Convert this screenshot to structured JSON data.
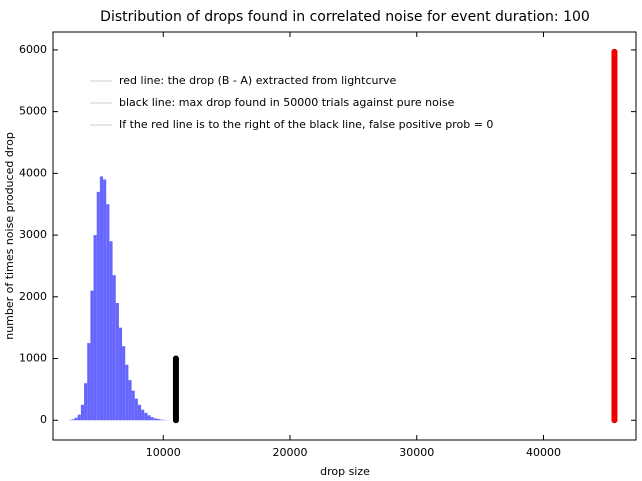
{
  "chart_data": {
    "type": "histogram",
    "title": "Distribution of drops found in correlated noise for event duration: 100",
    "xlabel": "drop size",
    "ylabel": "number of times noise produced drop",
    "bins": [
      2500,
      2750,
      3000,
      3250,
      3500,
      3750,
      4000,
      4250,
      4500,
      4750,
      5000,
      5250,
      5500,
      5750,
      6000,
      6250,
      6500,
      6750,
      7000,
      7250,
      7500,
      7750,
      8000,
      8250,
      8500,
      8750,
      9000,
      9250,
      9500,
      9750,
      10000,
      10250,
      10500
    ],
    "counts": [
      5,
      15,
      40,
      90,
      250,
      600,
      1250,
      2100,
      3000,
      3700,
      3950,
      3900,
      3500,
      2900,
      2350,
      1900,
      1500,
      1200,
      900,
      650,
      480,
      350,
      250,
      170,
      120,
      80,
      50,
      30,
      20,
      10,
      5,
      2
    ],
    "color": "#6666ff",
    "lines": [
      {
        "x": 45600,
        "y": [
          0,
          5970
        ],
        "color": "#ee0000"
      },
      {
        "x": 11000,
        "y": [
          0,
          1000
        ],
        "color": "#000000"
      }
    ],
    "legend": [
      "red line: the drop (B - A) extracted from lightcurve",
      "black line: max drop found in 50000 trials against pure noise",
      "If the red line is to the right of the black line, false positive prob = 0"
    ],
    "legend_color": "#cccccc",
    "xlim": [
      1300,
      47300
    ],
    "ylim": [
      -320,
      6290
    ],
    "xticks": [
      10000,
      20000,
      30000,
      40000
    ],
    "yticks": [
      0,
      1000,
      2000,
      3000,
      4000,
      5000,
      6000
    ]
  }
}
